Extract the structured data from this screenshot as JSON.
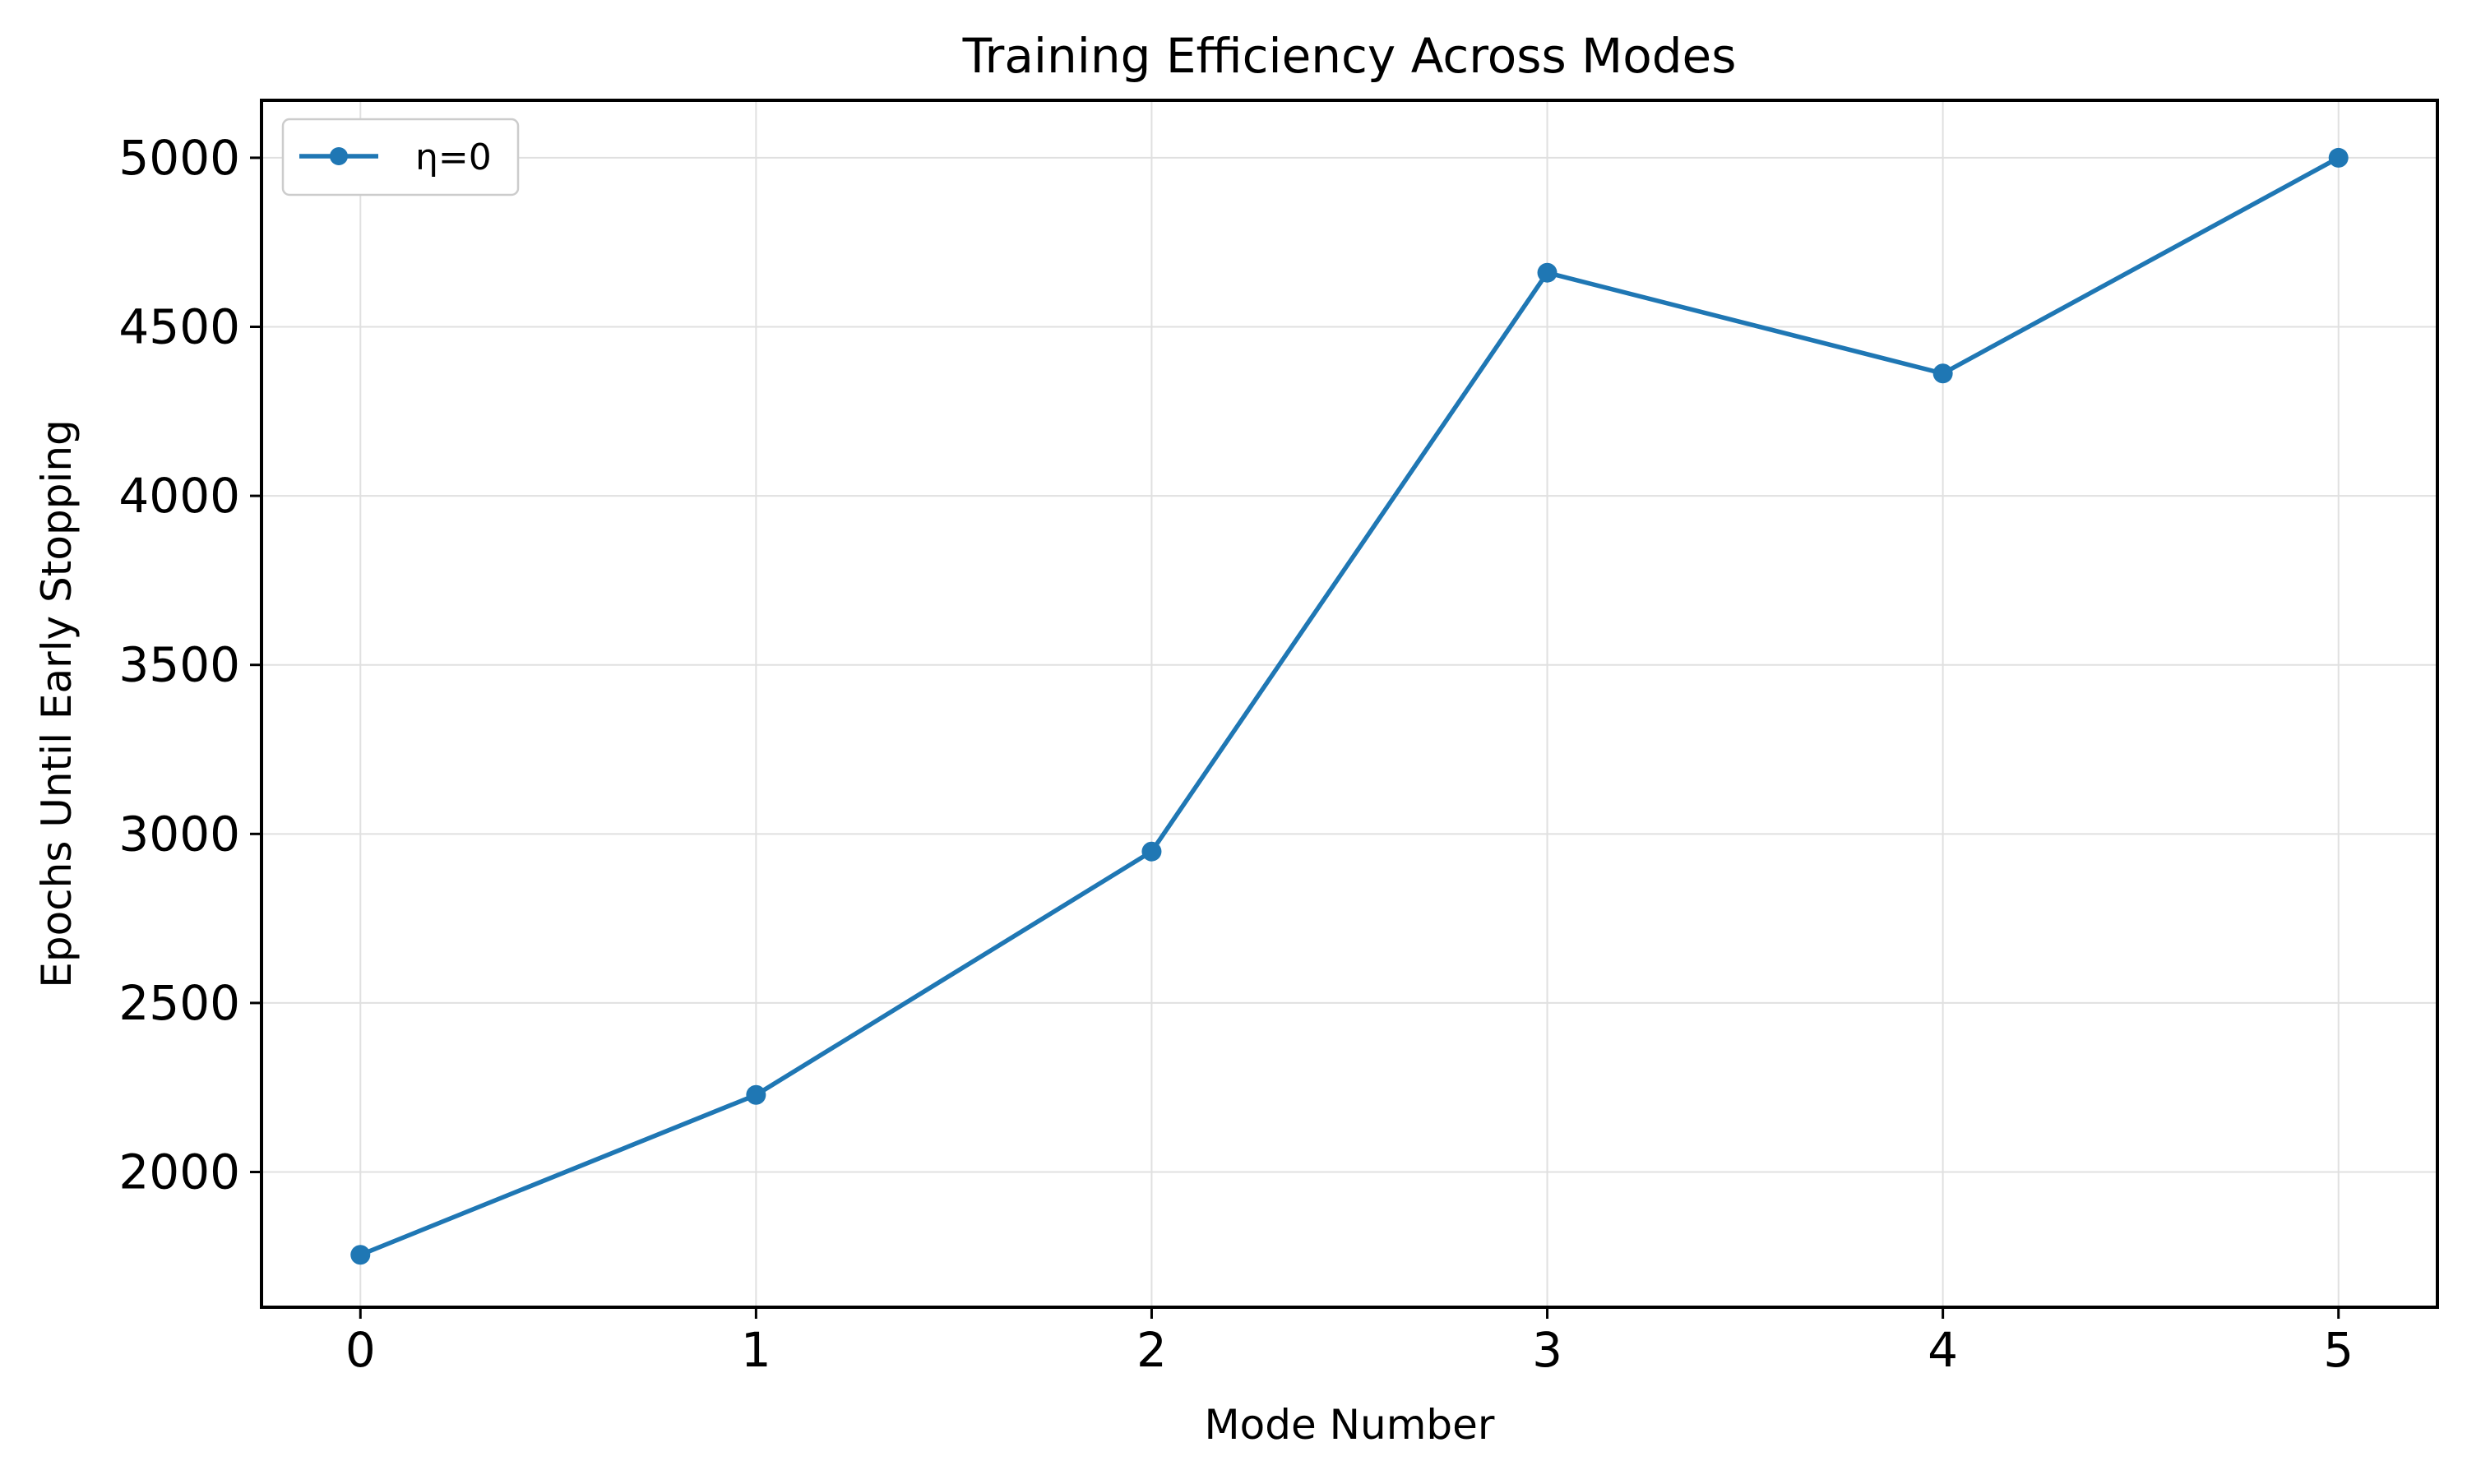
{
  "chart_data": {
    "type": "line",
    "title": "Training Efficiency Across Modes",
    "xlabel": "Mode Number",
    "ylabel": "Epochs Until Early Stopping",
    "x": [
      0,
      1,
      2,
      3,
      4,
      5
    ],
    "xlim": [
      -0.25,
      5.25
    ],
    "ylim": [
      1600,
      5170
    ],
    "xticks": [
      0,
      1,
      2,
      3,
      4,
      5
    ],
    "yticks": [
      2000,
      2500,
      3000,
      3500,
      4000,
      4500,
      5000
    ],
    "grid": true,
    "legend_position": "top-left",
    "series": [
      {
        "name": "η=0",
        "color": "#1f77b4",
        "marker": "circle",
        "values": [
          1755,
          2228,
          2948,
          4660,
          4362,
          5000
        ]
      }
    ]
  }
}
